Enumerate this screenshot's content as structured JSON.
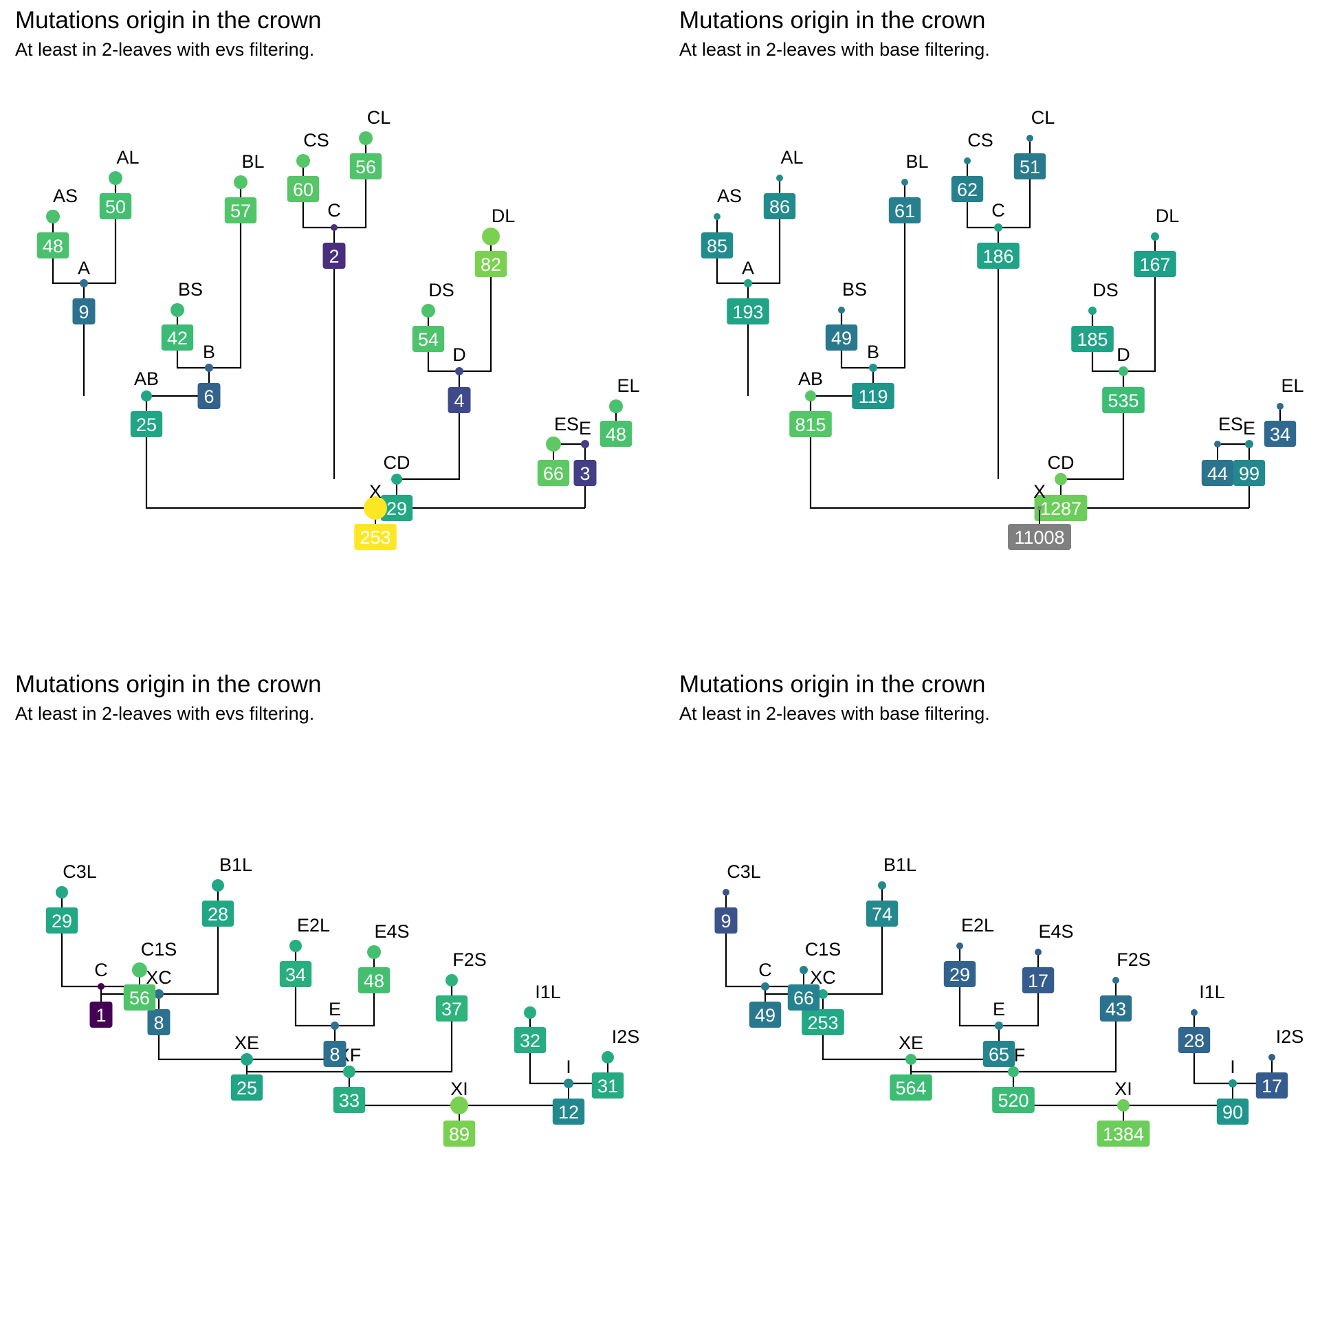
{
  "panels": [
    {
      "title": "Mutations origin in the crown",
      "subtitle": "At least in 2-leaves with evs filtering.",
      "nodes": [
        {
          "id": "AS",
          "label": "AS",
          "value": "48",
          "color": "#4ac16d"
        },
        {
          "id": "AL",
          "label": "AL",
          "value": "50",
          "color": "#43bf71"
        },
        {
          "id": "A",
          "label": "A",
          "value": "9",
          "color": "#2c728e"
        },
        {
          "id": "BS",
          "label": "BS",
          "value": "42",
          "color": "#3bbb75"
        },
        {
          "id": "BL",
          "label": "BL",
          "value": "57",
          "color": "#52c569"
        },
        {
          "id": "B",
          "label": "B",
          "value": "6",
          "color": "#33638d"
        },
        {
          "id": "AB",
          "label": "AB",
          "value": "25",
          "color": "#21a685"
        },
        {
          "id": "CS",
          "label": "CS",
          "value": "60",
          "color": "#56c667"
        },
        {
          "id": "CL",
          "label": "CL",
          "value": "56",
          "color": "#50c46a"
        },
        {
          "id": "C",
          "label": "C",
          "value": "2",
          "color": "#472f7d"
        },
        {
          "id": "DS",
          "label": "DS",
          "value": "54",
          "color": "#4ec36b"
        },
        {
          "id": "DL",
          "label": "DL",
          "value": "82",
          "color": "#7ad151"
        },
        {
          "id": "D",
          "label": "D",
          "value": "4",
          "color": "#3e4a89"
        },
        {
          "id": "CD",
          "label": "CD",
          "value": "29",
          "color": "#22a884"
        },
        {
          "id": "ES",
          "label": "ES",
          "value": "66",
          "color": "#5ec962"
        },
        {
          "id": "EL",
          "label": "EL",
          "value": "48",
          "color": "#4ac16d"
        },
        {
          "id": "E",
          "label": "E",
          "value": "3",
          "color": "#433e85"
        },
        {
          "id": "X",
          "label": "X",
          "value": "253",
          "color": "#fde725"
        }
      ]
    },
    {
      "title": "Mutations origin in the crown",
      "subtitle": "At least in 2-leaves with base filtering.",
      "nodes": [
        {
          "id": "AS",
          "label": "AS",
          "value": "85",
          "color": "#228c8d"
        },
        {
          "id": "AL",
          "label": "AL",
          "value": "86",
          "color": "#228c8d"
        },
        {
          "id": "A",
          "label": "A",
          "value": "193",
          "color": "#21a386"
        },
        {
          "id": "BS",
          "label": "BS",
          "value": "49",
          "color": "#2a788e"
        },
        {
          "id": "BL",
          "label": "BL",
          "value": "61",
          "color": "#27808e"
        },
        {
          "id": "B",
          "label": "B",
          "value": "119",
          "color": "#1f968b"
        },
        {
          "id": "AB",
          "label": "AB",
          "value": "815",
          "color": "#55c667"
        },
        {
          "id": "CS",
          "label": "CS",
          "value": "62",
          "color": "#26818e"
        },
        {
          "id": "CL",
          "label": "CL",
          "value": "51",
          "color": "#2a7a8e"
        },
        {
          "id": "C",
          "label": "C",
          "value": "186",
          "color": "#20a386"
        },
        {
          "id": "DS",
          "label": "DS",
          "value": "185",
          "color": "#20a386"
        },
        {
          "id": "DL",
          "label": "DL",
          "value": "167",
          "color": "#1fa088"
        },
        {
          "id": "D",
          "label": "D",
          "value": "535",
          "color": "#3dbc74"
        },
        {
          "id": "CD",
          "label": "CD",
          "value": "1287",
          "color": "#6ccd5a"
        },
        {
          "id": "ES",
          "label": "ES",
          "value": "44",
          "color": "#2c738e"
        },
        {
          "id": "EL",
          "label": "EL",
          "value": "34",
          "color": "#30698e"
        },
        {
          "id": "E",
          "label": "E",
          "value": "99",
          "color": "#23898e"
        },
        {
          "id": "X",
          "label": "X",
          "value": "11008",
          "color": "#808080"
        }
      ]
    },
    {
      "title": "Mutations origin in the crown",
      "subtitle": "At least in 2-leaves with evs filtering.",
      "nodes": [
        {
          "id": "C3L",
          "label": "C3L",
          "value": "29",
          "color": "#22a884"
        },
        {
          "id": "B1L",
          "label": "B1L",
          "value": "28",
          "color": "#22a785"
        },
        {
          "id": "C",
          "label": "C",
          "value": "1",
          "color": "#440154"
        },
        {
          "id": "C1S",
          "label": "C1S",
          "value": "56",
          "color": "#50c46a"
        },
        {
          "id": "XC",
          "label": "XC",
          "value": "8",
          "color": "#2d718e"
        },
        {
          "id": "E2L",
          "label": "E2L",
          "value": "34",
          "color": "#29af7f"
        },
        {
          "id": "E4S",
          "label": "E4S",
          "value": "48",
          "color": "#44bf70"
        },
        {
          "id": "E",
          "label": "E",
          "value": "8",
          "color": "#2d718e"
        },
        {
          "id": "XE",
          "label": "XE",
          "value": "25",
          "color": "#21a585"
        },
        {
          "id": "F2S",
          "label": "F2S",
          "value": "37",
          "color": "#2eb37c"
        },
        {
          "id": "XF",
          "label": "XF",
          "value": "33",
          "color": "#28ae80"
        },
        {
          "id": "I1L",
          "label": "I1L",
          "value": "32",
          "color": "#27ad81"
        },
        {
          "id": "I2S",
          "label": "I2S",
          "value": "31",
          "color": "#25ab82"
        },
        {
          "id": "I",
          "label": "I",
          "value": "12",
          "color": "#23888e"
        },
        {
          "id": "XI",
          "label": "XI",
          "value": "89",
          "color": "#7ad151"
        }
      ]
    },
    {
      "title": "Mutations origin in the crown",
      "subtitle": "At least in 2-leaves with base filtering.",
      "nodes": [
        {
          "id": "C3L",
          "label": "C3L",
          "value": "9",
          "color": "#3b528b"
        },
        {
          "id": "B1L",
          "label": "B1L",
          "value": "74",
          "color": "#23898e"
        },
        {
          "id": "C",
          "label": "C",
          "value": "49",
          "color": "#2a788e"
        },
        {
          "id": "C1S",
          "label": "C1S",
          "value": "66",
          "color": "#26828e"
        },
        {
          "id": "XC",
          "label": "XC",
          "value": "253",
          "color": "#22a884"
        },
        {
          "id": "E2L",
          "label": "E2L",
          "value": "29",
          "color": "#33638d"
        },
        {
          "id": "E4S",
          "label": "E4S",
          "value": "17",
          "color": "#365c8d"
        },
        {
          "id": "E",
          "label": "E",
          "value": "65",
          "color": "#25848e"
        },
        {
          "id": "XE",
          "label": "XE",
          "value": "564",
          "color": "#3dbc74"
        },
        {
          "id": "F2S",
          "label": "F2S",
          "value": "43",
          "color": "#2c728e"
        },
        {
          "id": "XF",
          "label": "XF",
          "value": "520",
          "color": "#3bbb75"
        },
        {
          "id": "I1L",
          "label": "I1L",
          "value": "28",
          "color": "#31668e"
        },
        {
          "id": "I2S",
          "label": "I2S",
          "value": "17",
          "color": "#365c8d"
        },
        {
          "id": "I",
          "label": "I",
          "value": "90",
          "color": "#1f958b"
        },
        {
          "id": "XI",
          "label": "XI",
          "value": "1384",
          "color": "#6ccd5a"
        }
      ]
    }
  ]
}
